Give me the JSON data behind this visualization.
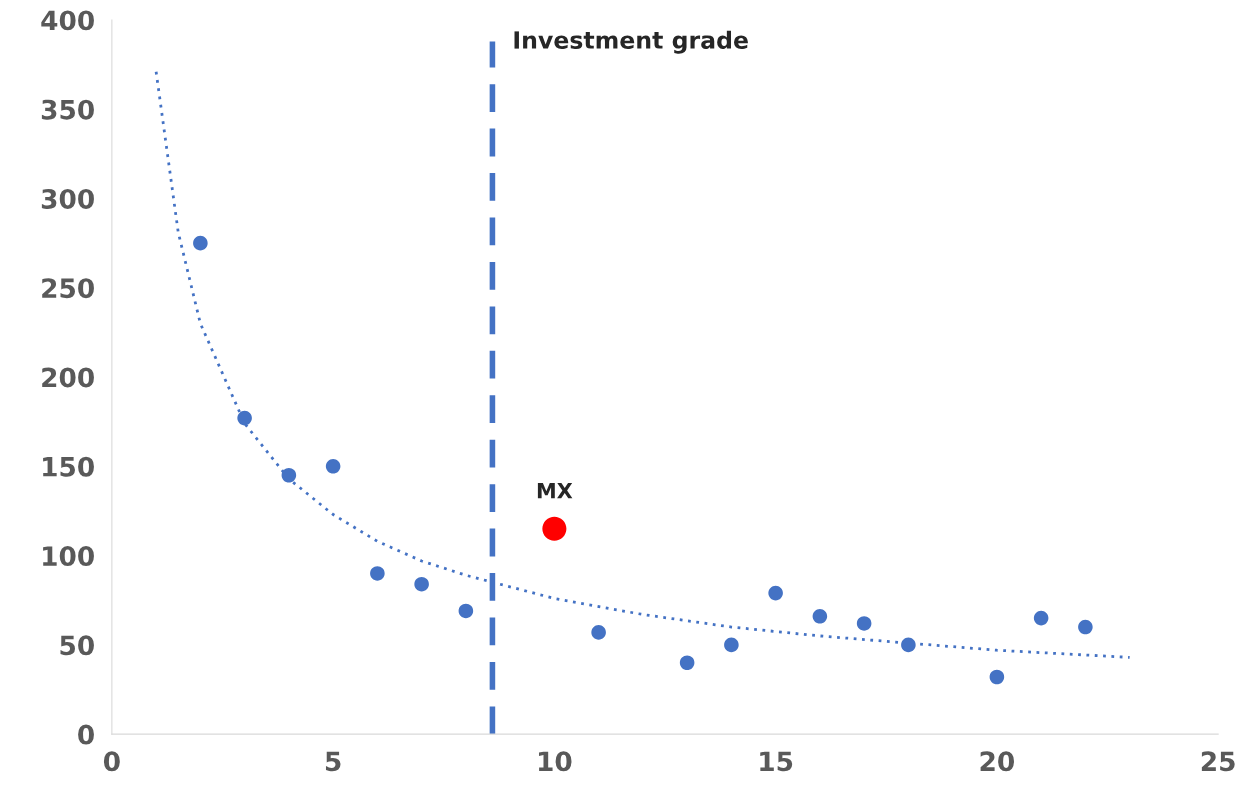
{
  "chart_data": {
    "type": "scatter",
    "series": [
      {
        "color": "#4472c4",
        "marker": "circle",
        "x": [
          2,
          3,
          4,
          5,
          6,
          7,
          8,
          11,
          13,
          14,
          15,
          16,
          17,
          18,
          20,
          21,
          22
        ],
        "values": [
          275,
          177,
          145,
          150,
          90,
          84,
          69,
          57,
          40,
          50,
          79,
          66,
          62,
          50,
          32,
          65,
          60
        ]
      },
      {
        "color": "#ff0000",
        "marker": "circle",
        "x": [
          10
        ],
        "values": [
          115
        ]
      },
      {
        "type": "line",
        "color": "#4472c4",
        "line_style": "dotted",
        "marker": "none",
        "x": [
          1,
          1.5,
          2,
          3,
          4,
          5,
          6,
          7,
          8,
          10,
          12,
          14,
          16,
          18,
          20,
          23
        ],
        "values": [
          371,
          281,
          230,
          174,
          143,
          123,
          108,
          97,
          89,
          76,
          67,
          60,
          55,
          51,
          47,
          43
        ]
      }
    ],
    "xlim": [
      0,
      25
    ],
    "ylim": [
      0,
      400
    ],
    "xticks": [
      0,
      5,
      10,
      15,
      20,
      25
    ],
    "yticks": [
      0,
      50,
      100,
      150,
      200,
      250,
      300,
      350,
      400
    ],
    "ref_lines": [
      {
        "axis": "x",
        "value": 8.6,
        "label": "Investment grade",
        "color": "#4472c4",
        "line_style": "dashed"
      }
    ],
    "annotations": [
      {
        "text": "MX",
        "x": 10,
        "y": 115
      }
    ]
  }
}
